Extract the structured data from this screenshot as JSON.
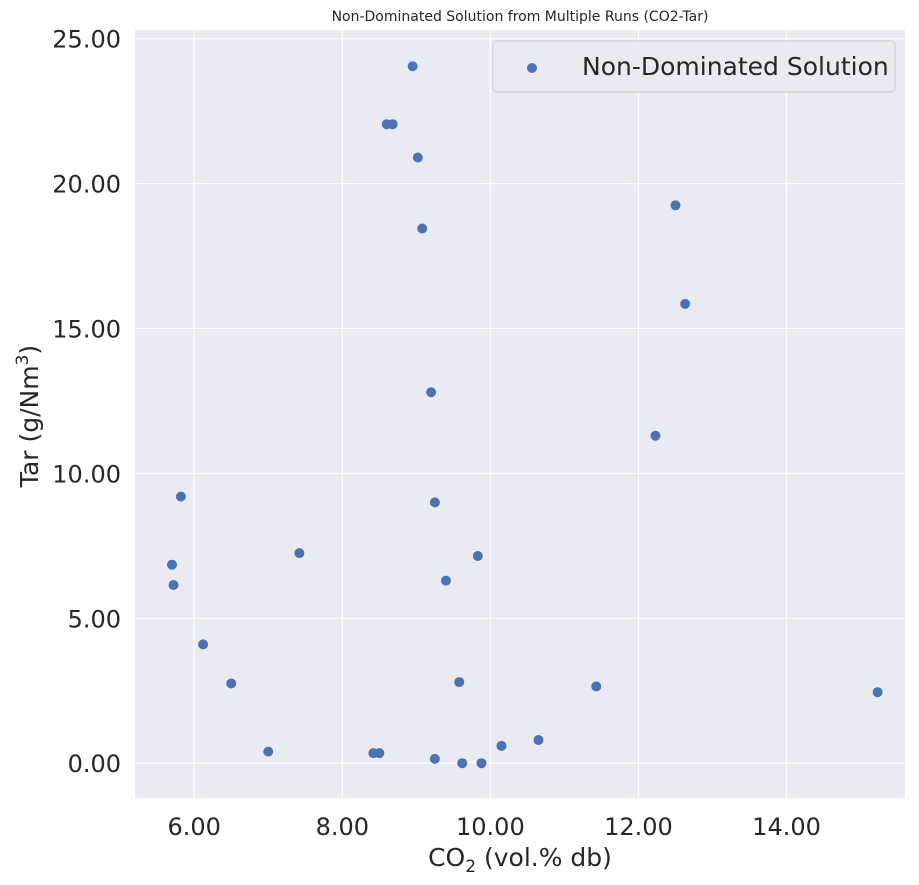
{
  "chart_data": {
    "type": "scatter",
    "title": "Non-Dominated Solution from Multiple Runs (CO2-Tar)",
    "xlabel": {
      "main": "CO",
      "sub": "2",
      "rest": " (vol.% db)"
    },
    "ylabel": {
      "main": "Tar (g/Nm",
      "sup": "3",
      "rest": ")"
    },
    "xlim": [
      5.2,
      15.6
    ],
    "ylim": [
      -1.2,
      25.3
    ],
    "xticks": [
      "6.00",
      "8.00",
      "10.00",
      "12.00",
      "14.00"
    ],
    "yticks": [
      "0.00",
      "5.00",
      "10.00",
      "15.00",
      "20.00",
      "25.00"
    ],
    "grid": true,
    "legend_position": "top-right",
    "series": [
      {
        "name": "Non-Dominated Solution",
        "color": "#4c72b0",
        "points": [
          [
            8.95,
            24.05
          ],
          [
            8.6,
            22.05
          ],
          [
            8.68,
            22.05
          ],
          [
            9.02,
            20.9
          ],
          [
            9.08,
            18.45
          ],
          [
            12.5,
            19.25
          ],
          [
            12.63,
            15.85
          ],
          [
            9.2,
            12.8
          ],
          [
            12.23,
            11.3
          ],
          [
            5.82,
            9.2
          ],
          [
            9.25,
            9.0
          ],
          [
            7.42,
            7.25
          ],
          [
            9.83,
            7.15
          ],
          [
            5.7,
            6.85
          ],
          [
            5.72,
            6.15
          ],
          [
            9.4,
            6.3
          ],
          [
            6.12,
            4.1
          ],
          [
            6.5,
            2.75
          ],
          [
            9.58,
            2.8
          ],
          [
            11.43,
            2.65
          ],
          [
            15.23,
            2.45
          ],
          [
            7.0,
            0.4
          ],
          [
            8.42,
            0.35
          ],
          [
            8.5,
            0.35
          ],
          [
            9.25,
            0.15
          ],
          [
            9.62,
            0.0
          ],
          [
            9.88,
            0.0
          ],
          [
            10.15,
            0.6
          ],
          [
            10.65,
            0.8
          ]
        ]
      }
    ]
  },
  "colors": {
    "plot_background": "#eaeaf2",
    "grid": "#ffffff",
    "marker": "#4c72b0"
  }
}
